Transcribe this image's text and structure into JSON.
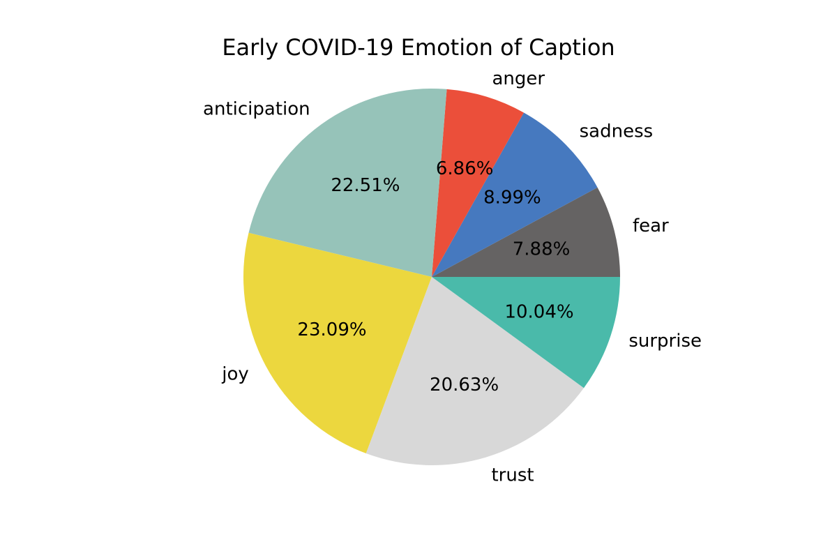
{
  "chart_data": {
    "type": "pie",
    "title": "Early COVID-19 Emotion of Caption",
    "start_angle_deg": 0,
    "direction": "counterclockwise",
    "slices": [
      {
        "label": "fear",
        "value": 7.88,
        "pct_label": "7.88%",
        "color": "#656363"
      },
      {
        "label": "sadness",
        "value": 8.99,
        "pct_label": "8.99%",
        "color": "#4679BF"
      },
      {
        "label": "anger",
        "value": 6.86,
        "pct_label": "6.86%",
        "color": "#EB4F3A"
      },
      {
        "label": "anticipation",
        "value": 22.51,
        "pct_label": "22.51%",
        "color": "#96C3B9"
      },
      {
        "label": "joy",
        "value": 23.09,
        "pct_label": "23.09%",
        "color": "#ECD73E"
      },
      {
        "label": "trust",
        "value": 20.63,
        "pct_label": "20.63%",
        "color": "#D8D8D8"
      },
      {
        "label": "surprise",
        "value": 10.04,
        "pct_label": "10.04%",
        "color": "#4ABAAA"
      }
    ]
  }
}
